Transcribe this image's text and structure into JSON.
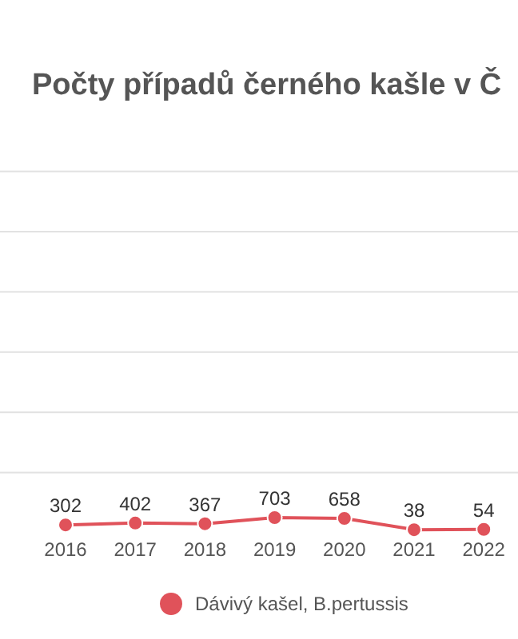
{
  "chart_data": {
    "type": "line",
    "title": "Počty případů černého kašle v Č",
    "categories": [
      "2016",
      "2017",
      "2018",
      "2019",
      "2020",
      "2021",
      "2022"
    ],
    "series": [
      {
        "name": "Dávivý kašel, B.pertussis",
        "color": "#e0525a",
        "values": [
          302,
          402,
          367,
          703,
          658,
          38,
          54
        ]
      }
    ],
    "tick_labels": "x",
    "legend": "bottom",
    "marker": "circle",
    "line_style": "solid",
    "data_labels": true
  }
}
